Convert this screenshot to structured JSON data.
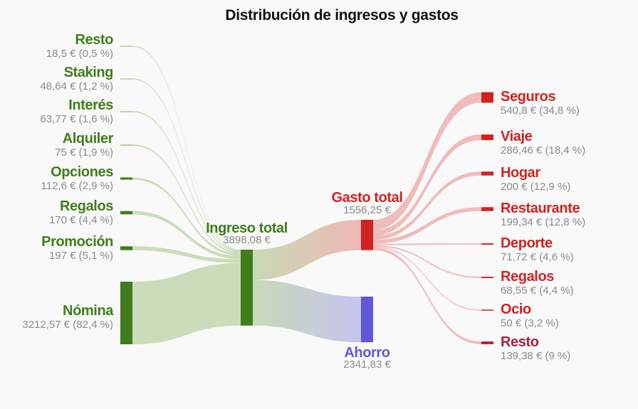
{
  "chart_data": {
    "type": "sankey",
    "title": "Distribución de ingresos y gastos",
    "colors": {
      "income": "#3f7d1c",
      "income_link": "#c8dab6",
      "expense": "#d32121",
      "expense_link": "#efb7b7",
      "saving": "#6157d8",
      "saving_link": "#c6c3ef",
      "last_expense": "#b01e3e"
    },
    "sources": [
      {
        "label": "Resto",
        "value_text": "18,5 € (0,5 %)",
        "value": 18.5
      },
      {
        "label": "Staking",
        "value_text": "48,64 € (1,2 %)",
        "value": 48.64
      },
      {
        "label": "Interés",
        "value_text": "63,77 € (1,6 %)",
        "value": 63.77
      },
      {
        "label": "Alquiler",
        "value_text": "75 € (1,9 %)",
        "value": 75
      },
      {
        "label": "Opciones",
        "value_text": "112,6 € (2,9 %)",
        "value": 112.6
      },
      {
        "label": "Regalos",
        "value_text": "170 € (4,4 %)",
        "value": 170
      },
      {
        "label": "Promoción",
        "value_text": "197 € (5,1 %)",
        "value": 197
      },
      {
        "label": "Nómina",
        "value_text": "3212,57 € (82,4 %)",
        "value": 3212.57
      }
    ],
    "total_income": {
      "label": "Ingreso total",
      "value_text": "3898,08 €",
      "value": 3898.08
    },
    "total_expense": {
      "label": "Gasto total",
      "value_text": "1556,25 €",
      "value": 1556.25
    },
    "saving": {
      "label": "Ahorro",
      "value_text": "2341,83 €",
      "value": 2341.83
    },
    "expenses": [
      {
        "label": "Seguros",
        "value_text": "540,8 € (34,8 %)",
        "value": 540.8
      },
      {
        "label": "Viaje",
        "value_text": "286,46 € (18,4 %)",
        "value": 286.46
      },
      {
        "label": "Hogar",
        "value_text": "200 € (12,9 %)",
        "value": 200
      },
      {
        "label": "Restaurante",
        "value_text": "199,34 € (12,8 %)",
        "value": 199.34
      },
      {
        "label": "Deporte",
        "value_text": "71,72 € (4,6 %)",
        "value": 71.72
      },
      {
        "label": "Regalos",
        "value_text": "68,55 € (4,4 %)",
        "value": 68.55
      },
      {
        "label": "Ocio",
        "value_text": "50 € (3,2 %)",
        "value": 50
      },
      {
        "label": "Resto",
        "value_text": "139,38 € (9 %)",
        "value": 139.38
      }
    ]
  }
}
